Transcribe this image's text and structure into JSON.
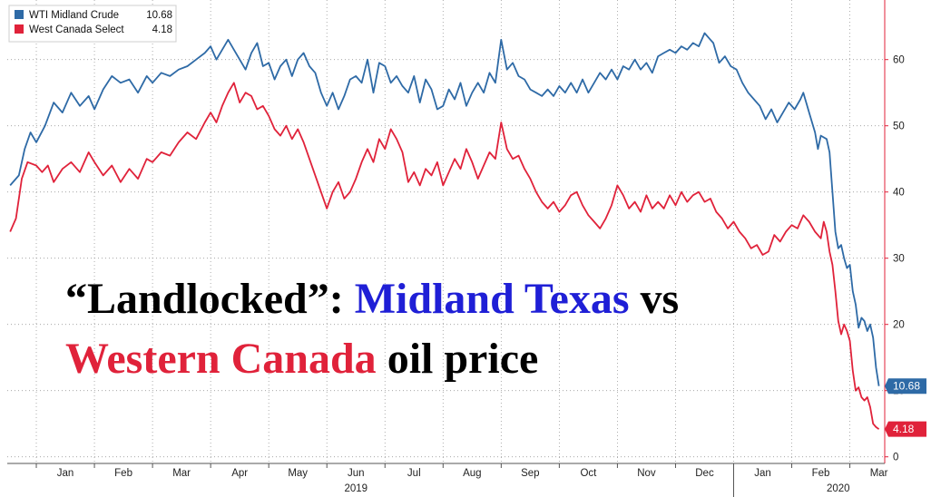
{
  "title": {
    "line1": {
      "a": "“Landlocked”: ",
      "b": "Midland Texas",
      "c": " vs"
    },
    "line2": {
      "a": "Western Canada",
      "b": " oil price"
    },
    "highlight_colors": {
      "midland": "#1f1fd6",
      "canada": "#e0223a"
    }
  },
  "legend": [
    {
      "name": "WTI Midland Crude",
      "value": "10.68",
      "color": "#2e6aa6"
    },
    {
      "name": "West Canada Select",
      "value": "4.18",
      "color": "#e0223a"
    }
  ],
  "chart_data": {
    "type": "line",
    "x_unit": "months since start of Jan 2019",
    "xlim": [
      -0.5,
      14.6
    ],
    "ylim": [
      -1,
      69
    ],
    "y_ticks": [
      0,
      10,
      20,
      30,
      40,
      50,
      60
    ],
    "y_tick_labels": [
      "0",
      "10",
      "20",
      "30",
      "40",
      "50",
      "60"
    ],
    "month_labels": [
      "Jan",
      "Feb",
      "Mar",
      "Apr",
      "May",
      "Jun",
      "Jul",
      "Aug",
      "Sep",
      "Oct",
      "Nov",
      "Dec",
      "Jan",
      "Feb",
      "Mar"
    ],
    "year_labels": [
      {
        "label": "2019",
        "x": 5.5
      },
      {
        "label": "2020",
        "x": 13.8
      }
    ],
    "y_axis_side": "right",
    "grid": true,
    "legend_position": "top-left",
    "last_value_labels": [
      "10.68",
      "4.18"
    ],
    "series": [
      {
        "name": "WTI Midland Crude",
        "color": "#2e6aa6",
        "points": [
          [
            -0.45,
            41.0
          ],
          [
            -0.3,
            42.5
          ],
          [
            -0.2,
            46.5
          ],
          [
            -0.1,
            49.0
          ],
          [
            0.0,
            47.5
          ],
          [
            0.15,
            50.0
          ],
          [
            0.3,
            53.5
          ],
          [
            0.45,
            52.0
          ],
          [
            0.6,
            55.0
          ],
          [
            0.75,
            53.0
          ],
          [
            0.9,
            54.5
          ],
          [
            1.0,
            52.5
          ],
          [
            1.15,
            55.5
          ],
          [
            1.3,
            57.5
          ],
          [
            1.45,
            56.5
          ],
          [
            1.6,
            57.0
          ],
          [
            1.75,
            55.0
          ],
          [
            1.9,
            57.5
          ],
          [
            2.0,
            56.5
          ],
          [
            2.15,
            58.0
          ],
          [
            2.3,
            57.5
          ],
          [
            2.45,
            58.5
          ],
          [
            2.6,
            59.0
          ],
          [
            2.75,
            60.0
          ],
          [
            2.9,
            61.0
          ],
          [
            3.0,
            62.0
          ],
          [
            3.1,
            60.0
          ],
          [
            3.2,
            61.5
          ],
          [
            3.3,
            63.0
          ],
          [
            3.4,
            61.5
          ],
          [
            3.5,
            60.0
          ],
          [
            3.6,
            58.5
          ],
          [
            3.7,
            61.0
          ],
          [
            3.8,
            62.5
          ],
          [
            3.9,
            59.0
          ],
          [
            4.0,
            59.5
          ],
          [
            4.1,
            57.0
          ],
          [
            4.2,
            59.0
          ],
          [
            4.3,
            60.0
          ],
          [
            4.4,
            57.5
          ],
          [
            4.5,
            60.0
          ],
          [
            4.6,
            61.0
          ],
          [
            4.7,
            59.0
          ],
          [
            4.8,
            58.0
          ],
          [
            4.9,
            55.0
          ],
          [
            5.0,
            53.0
          ],
          [
            5.1,
            55.0
          ],
          [
            5.2,
            52.5
          ],
          [
            5.3,
            54.5
          ],
          [
            5.4,
            57.0
          ],
          [
            5.5,
            57.5
          ],
          [
            5.6,
            56.5
          ],
          [
            5.7,
            60.0
          ],
          [
            5.8,
            55.0
          ],
          [
            5.9,
            59.5
          ],
          [
            6.0,
            59.0
          ],
          [
            6.1,
            56.5
          ],
          [
            6.2,
            57.5
          ],
          [
            6.3,
            56.0
          ],
          [
            6.4,
            55.0
          ],
          [
            6.5,
            57.5
          ],
          [
            6.6,
            53.5
          ],
          [
            6.7,
            57.0
          ],
          [
            6.8,
            55.5
          ],
          [
            6.9,
            52.5
          ],
          [
            7.0,
            53.0
          ],
          [
            7.1,
            55.5
          ],
          [
            7.2,
            54.0
          ],
          [
            7.3,
            56.5
          ],
          [
            7.4,
            53.0
          ],
          [
            7.5,
            55.0
          ],
          [
            7.6,
            56.5
          ],
          [
            7.7,
            55.0
          ],
          [
            7.8,
            58.0
          ],
          [
            7.9,
            56.5
          ],
          [
            8.0,
            63.0
          ],
          [
            8.1,
            58.5
          ],
          [
            8.2,
            59.5
          ],
          [
            8.3,
            57.5
          ],
          [
            8.4,
            57.0
          ],
          [
            8.5,
            55.5
          ],
          [
            8.6,
            55.0
          ],
          [
            8.7,
            54.5
          ],
          [
            8.8,
            55.5
          ],
          [
            8.9,
            54.5
          ],
          [
            9.0,
            56.0
          ],
          [
            9.1,
            55.0
          ],
          [
            9.2,
            56.5
          ],
          [
            9.3,
            55.0
          ],
          [
            9.4,
            57.0
          ],
          [
            9.5,
            55.0
          ],
          [
            9.6,
            56.5
          ],
          [
            9.7,
            58.0
          ],
          [
            9.8,
            57.0
          ],
          [
            9.9,
            58.5
          ],
          [
            10.0,
            57.0
          ],
          [
            10.1,
            59.0
          ],
          [
            10.2,
            58.5
          ],
          [
            10.3,
            60.0
          ],
          [
            10.4,
            58.5
          ],
          [
            10.5,
            59.5
          ],
          [
            10.6,
            58.0
          ],
          [
            10.7,
            60.5
          ],
          [
            10.8,
            61.0
          ],
          [
            10.9,
            61.5
          ],
          [
            11.0,
            61.0
          ],
          [
            11.1,
            62.0
          ],
          [
            11.2,
            61.5
          ],
          [
            11.3,
            62.5
          ],
          [
            11.4,
            62.0
          ],
          [
            11.5,
            64.0
          ],
          [
            11.6,
            63.0
          ],
          [
            11.65,
            62.5
          ],
          [
            11.75,
            59.5
          ],
          [
            11.85,
            60.5
          ],
          [
            11.95,
            59.0
          ],
          [
            12.05,
            58.5
          ],
          [
            12.15,
            56.5
          ],
          [
            12.25,
            55.0
          ],
          [
            12.35,
            54.0
          ],
          [
            12.45,
            53.0
          ],
          [
            12.55,
            51.0
          ],
          [
            12.65,
            52.5
          ],
          [
            12.75,
            50.5
          ],
          [
            12.85,
            52.0
          ],
          [
            12.95,
            53.5
          ],
          [
            13.05,
            52.5
          ],
          [
            13.15,
            54.0
          ],
          [
            13.2,
            55.0
          ],
          [
            13.3,
            52.0
          ],
          [
            13.4,
            49.0
          ],
          [
            13.45,
            46.5
          ],
          [
            13.5,
            48.5
          ],
          [
            13.6,
            48.0
          ],
          [
            13.65,
            46.0
          ],
          [
            13.7,
            40.0
          ],
          [
            13.75,
            34.0
          ],
          [
            13.8,
            31.5
          ],
          [
            13.85,
            32.0
          ],
          [
            13.9,
            30.0
          ],
          [
            13.95,
            28.5
          ],
          [
            14.0,
            29.0
          ],
          [
            14.05,
            25.0
          ],
          [
            14.1,
            23.0
          ],
          [
            14.15,
            19.5
          ],
          [
            14.2,
            21.0
          ],
          [
            14.25,
            20.5
          ],
          [
            14.3,
            19.0
          ],
          [
            14.35,
            20.0
          ],
          [
            14.4,
            18.0
          ],
          [
            14.45,
            13.5
          ],
          [
            14.5,
            10.68
          ]
        ]
      },
      {
        "name": "West Canada Select",
        "color": "#e0223a",
        "points": [
          [
            -0.45,
            34.0
          ],
          [
            -0.35,
            36.0
          ],
          [
            -0.25,
            42.0
          ],
          [
            -0.15,
            44.5
          ],
          [
            0.0,
            44.0
          ],
          [
            0.1,
            43.0
          ],
          [
            0.2,
            44.0
          ],
          [
            0.3,
            41.5
          ],
          [
            0.45,
            43.5
          ],
          [
            0.6,
            44.5
          ],
          [
            0.75,
            43.0
          ],
          [
            0.9,
            46.0
          ],
          [
            1.0,
            44.5
          ],
          [
            1.15,
            42.5
          ],
          [
            1.3,
            44.0
          ],
          [
            1.45,
            41.5
          ],
          [
            1.6,
            43.5
          ],
          [
            1.75,
            42.0
          ],
          [
            1.9,
            45.0
          ],
          [
            2.0,
            44.5
          ],
          [
            2.15,
            46.0
          ],
          [
            2.3,
            45.5
          ],
          [
            2.45,
            47.5
          ],
          [
            2.6,
            49.0
          ],
          [
            2.75,
            48.0
          ],
          [
            2.9,
            50.5
          ],
          [
            3.0,
            52.0
          ],
          [
            3.1,
            50.5
          ],
          [
            3.2,
            53.0
          ],
          [
            3.3,
            55.0
          ],
          [
            3.4,
            56.5
          ],
          [
            3.5,
            53.5
          ],
          [
            3.6,
            55.0
          ],
          [
            3.7,
            54.5
          ],
          [
            3.8,
            52.5
          ],
          [
            3.9,
            53.0
          ],
          [
            4.0,
            51.5
          ],
          [
            4.1,
            49.5
          ],
          [
            4.2,
            48.5
          ],
          [
            4.3,
            50.0
          ],
          [
            4.4,
            48.0
          ],
          [
            4.5,
            49.5
          ],
          [
            4.6,
            47.5
          ],
          [
            4.7,
            45.0
          ],
          [
            4.8,
            42.5
          ],
          [
            4.9,
            40.0
          ],
          [
            5.0,
            37.5
          ],
          [
            5.1,
            40.0
          ],
          [
            5.2,
            41.5
          ],
          [
            5.3,
            39.0
          ],
          [
            5.4,
            40.0
          ],
          [
            5.5,
            42.0
          ],
          [
            5.6,
            44.5
          ],
          [
            5.7,
            46.5
          ],
          [
            5.8,
            44.5
          ],
          [
            5.9,
            48.0
          ],
          [
            6.0,
            46.5
          ],
          [
            6.1,
            49.5
          ],
          [
            6.2,
            48.0
          ],
          [
            6.3,
            46.0
          ],
          [
            6.4,
            41.5
          ],
          [
            6.5,
            43.0
          ],
          [
            6.6,
            41.0
          ],
          [
            6.7,
            43.5
          ],
          [
            6.8,
            42.5
          ],
          [
            6.9,
            44.5
          ],
          [
            7.0,
            41.0
          ],
          [
            7.1,
            43.0
          ],
          [
            7.2,
            45.0
          ],
          [
            7.3,
            43.5
          ],
          [
            7.4,
            46.5
          ],
          [
            7.5,
            44.5
          ],
          [
            7.6,
            42.0
          ],
          [
            7.7,
            44.0
          ],
          [
            7.8,
            46.0
          ],
          [
            7.9,
            45.0
          ],
          [
            8.0,
            50.5
          ],
          [
            8.1,
            46.5
          ],
          [
            8.2,
            45.0
          ],
          [
            8.3,
            45.5
          ],
          [
            8.4,
            43.5
          ],
          [
            8.5,
            42.0
          ],
          [
            8.6,
            40.0
          ],
          [
            8.7,
            38.5
          ],
          [
            8.8,
            37.5
          ],
          [
            8.9,
            38.5
          ],
          [
            9.0,
            37.0
          ],
          [
            9.1,
            38.0
          ],
          [
            9.2,
            39.5
          ],
          [
            9.3,
            40.0
          ],
          [
            9.4,
            38.0
          ],
          [
            9.5,
            36.5
          ],
          [
            9.6,
            35.5
          ],
          [
            9.7,
            34.5
          ],
          [
            9.8,
            36.0
          ],
          [
            9.9,
            38.0
          ],
          [
            10.0,
            41.0
          ],
          [
            10.1,
            39.5
          ],
          [
            10.2,
            37.5
          ],
          [
            10.3,
            38.5
          ],
          [
            10.4,
            37.0
          ],
          [
            10.5,
            39.5
          ],
          [
            10.6,
            37.5
          ],
          [
            10.7,
            38.5
          ],
          [
            10.8,
            37.5
          ],
          [
            10.9,
            39.5
          ],
          [
            11.0,
            38.0
          ],
          [
            11.1,
            40.0
          ],
          [
            11.2,
            38.5
          ],
          [
            11.3,
            39.5
          ],
          [
            11.4,
            40.0
          ],
          [
            11.5,
            38.5
          ],
          [
            11.6,
            39.0
          ],
          [
            11.7,
            37.0
          ],
          [
            11.8,
            36.0
          ],
          [
            11.9,
            34.5
          ],
          [
            12.0,
            35.5
          ],
          [
            12.1,
            34.0
          ],
          [
            12.2,
            33.0
          ],
          [
            12.3,
            31.5
          ],
          [
            12.4,
            32.0
          ],
          [
            12.5,
            30.5
          ],
          [
            12.6,
            31.0
          ],
          [
            12.7,
            33.5
          ],
          [
            12.8,
            32.5
          ],
          [
            12.9,
            34.0
          ],
          [
            13.0,
            35.0
          ],
          [
            13.1,
            34.5
          ],
          [
            13.2,
            36.5
          ],
          [
            13.3,
            35.5
          ],
          [
            13.4,
            34.0
          ],
          [
            13.5,
            33.0
          ],
          [
            13.55,
            35.5
          ],
          [
            13.6,
            34.0
          ],
          [
            13.65,
            31.0
          ],
          [
            13.7,
            29.0
          ],
          [
            13.75,
            25.0
          ],
          [
            13.8,
            20.5
          ],
          [
            13.85,
            18.5
          ],
          [
            13.9,
            20.0
          ],
          [
            13.95,
            19.0
          ],
          [
            14.0,
            17.5
          ],
          [
            14.05,
            13.0
          ],
          [
            14.1,
            10.0
          ],
          [
            14.15,
            10.5
          ],
          [
            14.2,
            9.0
          ],
          [
            14.25,
            8.5
          ],
          [
            14.3,
            9.0
          ],
          [
            14.35,
            7.5
          ],
          [
            14.4,
            5.0
          ],
          [
            14.45,
            4.5
          ],
          [
            14.5,
            4.18
          ]
        ]
      }
    ]
  }
}
